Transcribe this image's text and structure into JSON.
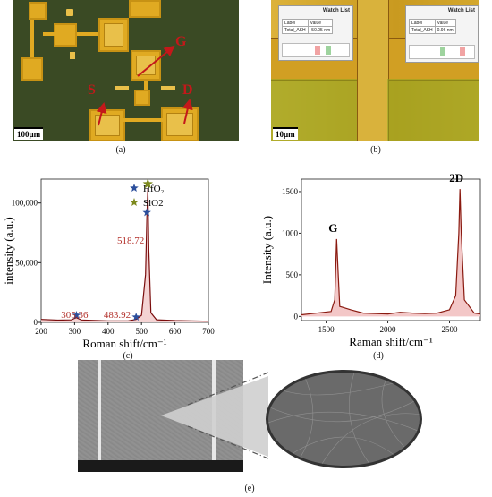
{
  "panel_labels": {
    "a": "(a)",
    "b": "(b)",
    "c": "(c)",
    "d": "(d)",
    "e": "(e)"
  },
  "panel_a": {
    "scale_bar": "100μm",
    "labels": {
      "G": "G",
      "S": "S",
      "D": "D"
    },
    "colors": {
      "pad": "#e0aa22",
      "background": "#3a4a24",
      "arrow": "#c4181a"
    }
  },
  "panel_b": {
    "scale_bar": "10μm",
    "watch_lists": [
      {
        "title": "Watch List",
        "col_label": "Label",
        "col_value": "Value",
        "row_label": "Total_ASH",
        "row_value": "-50.05 nm"
      },
      {
        "title": "Watch List",
        "col_label": "Label",
        "col_value": "Value",
        "row_label": "Total_ASH",
        "row_value": "0.96 nm"
      }
    ]
  },
  "chart_data": [
    {
      "type": "line",
      "panel": "c",
      "xlabel": "Roman shift/cm⁻¹",
      "ylabel": "intensity (a.u.)",
      "xlim": [
        200,
        700
      ],
      "ylim": [
        0,
        120000
      ],
      "x_ticks": [
        "200",
        "300",
        "400",
        "500",
        "600",
        "700"
      ],
      "y_ticks": [
        "0",
        "50,000",
        "100,000"
      ],
      "series": [
        {
          "values": [
            [
              200,
              2500
            ],
            [
              250,
              1900
            ],
            [
              290,
              2100
            ],
            [
              305,
              4000
            ],
            [
              320,
              2000
            ],
            [
              400,
              1300
            ],
            [
              460,
              1300
            ],
            [
              484,
              2500
            ],
            [
              500,
              6000
            ],
            [
              512,
              40000
            ],
            [
              516,
              88000
            ],
            [
              519,
              112000
            ],
            [
              522,
              60000
            ],
            [
              528,
              8000
            ],
            [
              545,
              2200
            ],
            [
              600,
              1500
            ],
            [
              650,
              1200
            ],
            [
              700,
              1000
            ]
          ]
        }
      ],
      "legend": [
        {
          "name": "HfO₂",
          "marker": "star",
          "color": "#2c4f9c"
        },
        {
          "name": "SiO2",
          "marker": "star",
          "color": "#7d8a1e"
        }
      ],
      "annotations": [
        {
          "text": "305.36",
          "x": 305.36
        },
        {
          "text": "483.92",
          "x": 483.92
        },
        {
          "text": "518.72",
          "x": 518.72
        }
      ],
      "colors": {
        "line": "#7a0c0c",
        "fill": "#f4d3d3",
        "label": "#b3302a"
      }
    },
    {
      "type": "line",
      "panel": "d",
      "xlabel": "Raman shift/cm⁻¹",
      "ylabel": "Intensity (a.u.)",
      "xlim": [
        1300,
        2750
      ],
      "ylim": [
        -50,
        1650
      ],
      "x_ticks": [
        "1500",
        "2000",
        "2500"
      ],
      "y_ticks": [
        "0",
        "500",
        "1000",
        "1500"
      ],
      "series": [
        {
          "values": [
            [
              1300,
              20
            ],
            [
              1450,
              45
            ],
            [
              1540,
              60
            ],
            [
              1570,
              200
            ],
            [
              1585,
              930
            ],
            [
              1595,
              600
            ],
            [
              1610,
              120
            ],
            [
              1700,
              80
            ],
            [
              1800,
              40
            ],
            [
              1900,
              35
            ],
            [
              2000,
              30
            ],
            [
              2100,
              50
            ],
            [
              2200,
              40
            ],
            [
              2300,
              35
            ],
            [
              2400,
              40
            ],
            [
              2500,
              80
            ],
            [
              2550,
              250
            ],
            [
              2575,
              1000
            ],
            [
              2585,
              1530
            ],
            [
              2595,
              1000
            ],
            [
              2620,
              200
            ],
            [
              2700,
              40
            ],
            [
              2750,
              30
            ]
          ]
        }
      ],
      "peak_labels": [
        {
          "text": "G",
          "x": 1585,
          "y": 930
        },
        {
          "text": "2D",
          "x": 2585,
          "y": 1530
        }
      ],
      "colors": {
        "line": "#8a1a10",
        "fill": "#f3c7c7"
      }
    }
  ]
}
